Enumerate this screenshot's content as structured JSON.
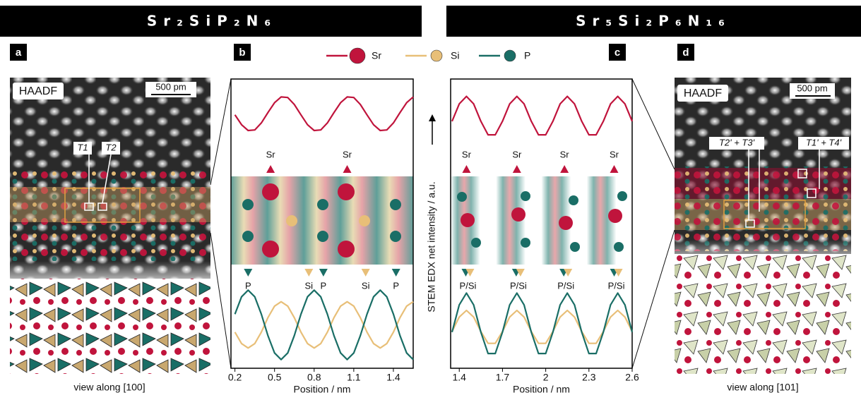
{
  "headers": [
    "Sr₂SiP₂N₆",
    "Sr₅Si₂P₆N₁₆"
  ],
  "panel_labels": [
    "a",
    "b",
    "c",
    "d"
  ],
  "images": [
    {
      "label": "HAADF",
      "scale": "500 pm",
      "sites": [
        "T1",
        "T2"
      ],
      "caption": "view along [100]"
    },
    {
      "label": "HAADF",
      "scale": "500 pm",
      "sites": [
        "T2' + T3'",
        "T1' + T4'"
      ],
      "caption": "view along [101]"
    }
  ],
  "y_label": "STEM EDX net intensity / a.u.",
  "chart_data": [
    {
      "type": "line",
      "x_label": "Position / nm",
      "x": [
        0.2,
        0.25,
        0.3,
        0.35,
        0.4,
        0.45,
        0.5,
        0.55,
        0.6,
        0.65,
        0.7,
        0.75,
        0.8,
        0.85,
        0.9,
        0.95,
        1.0,
        1.05,
        1.1,
        1.15,
        1.2,
        1.25,
        1.3,
        1.35,
        1.4,
        1.45,
        1.5,
        1.55
      ],
      "series": [
        {
          "name": "Sr",
          "color": "#c0143c",
          "values": [
            0.876,
            0.842,
            0.822,
            0.824,
            0.848,
            0.884,
            0.918,
            0.938,
            0.936,
            0.912,
            0.876,
            0.842,
            0.822,
            0.824,
            0.848,
            0.884,
            0.918,
            0.938,
            0.936,
            0.912,
            0.876,
            0.842,
            0.822,
            0.824,
            0.848,
            0.884,
            0.918,
            0.938
          ]
        },
        {
          "name": "Si",
          "color": "#e8bf78",
          "values": [
            0.125,
            0.085,
            0.07,
            0.085,
            0.125,
            0.175,
            0.215,
            0.23,
            0.215,
            0.175,
            0.125,
            0.085,
            0.07,
            0.085,
            0.125,
            0.175,
            0.215,
            0.23,
            0.215,
            0.175,
            0.125,
            0.085,
            0.07,
            0.085,
            0.125,
            0.175,
            0.215,
            0.23
          ]
        },
        {
          "name": "P",
          "color": "#1a6e66",
          "values": [
            0.187,
            0.247,
            0.27,
            0.247,
            0.187,
            0.113,
            0.053,
            0.03,
            0.053,
            0.113,
            0.187,
            0.247,
            0.27,
            0.247,
            0.187,
            0.113,
            0.053,
            0.03,
            0.053,
            0.113,
            0.187,
            0.247,
            0.27,
            0.247,
            0.187,
            0.113,
            0.053,
            0.03
          ]
        }
      ],
      "xlim": [
        0.17,
        1.55
      ],
      "ylim": [
        0,
        1
      ],
      "xticks": [
        0.2,
        0.5,
        0.8,
        1.1,
        1.4
      ],
      "top_markers": {
        "labels": [
          "Sr",
          "Sr"
        ],
        "x": [
          0.47,
          1.05
        ]
      },
      "bottom_markers": {
        "labels": [
          "P",
          "Si",
          "P",
          "Si",
          "P"
        ],
        "x": [
          0.3,
          0.76,
          0.87,
          1.19,
          1.42
        ]
      }
    },
    {
      "type": "line",
      "x_label": "Position / nm",
      "x": [
        1.35,
        1.4,
        1.45,
        1.5,
        1.55,
        1.6,
        1.65,
        1.7,
        1.75,
        1.8,
        1.85,
        1.9,
        1.95,
        2.0,
        2.05,
        2.1,
        2.15,
        2.2,
        2.25,
        2.3,
        2.35,
        2.4,
        2.45,
        2.5,
        2.55,
        2.6
      ],
      "series": [
        {
          "name": "Sr",
          "color": "#c0143c",
          "values": [
            0.854,
            0.914,
            0.94,
            0.914,
            0.854,
            0.807,
            0.807,
            0.854,
            0.914,
            0.94,
            0.914,
            0.854,
            0.807,
            0.807,
            0.854,
            0.914,
            0.94,
            0.914,
            0.854,
            0.807,
            0.807,
            0.854,
            0.914,
            0.94,
            0.914,
            0.854
          ]
        },
        {
          "name": "Si",
          "color": "#e8bf78",
          "values": [
            0.127,
            0.177,
            0.2,
            0.177,
            0.127,
            0.086,
            0.086,
            0.127,
            0.177,
            0.2,
            0.177,
            0.127,
            0.086,
            0.086,
            0.127,
            0.177,
            0.2,
            0.177,
            0.127,
            0.086,
            0.086,
            0.127,
            0.177,
            0.2,
            0.177,
            0.127
          ]
        },
        {
          "name": "P",
          "color": "#1a6e66",
          "values": [
            0.125,
            0.219,
            0.26,
            0.219,
            0.125,
            0.051,
            0.051,
            0.125,
            0.219,
            0.26,
            0.219,
            0.125,
            0.051,
            0.051,
            0.125,
            0.219,
            0.26,
            0.219,
            0.125,
            0.051,
            0.051,
            0.125,
            0.219,
            0.26,
            0.219,
            0.125
          ]
        }
      ],
      "xlim": [
        1.34,
        2.6
      ],
      "ylim": [
        0,
        1
      ],
      "xticks": [
        1.4,
        1.7,
        2.0,
        2.3,
        2.6
      ],
      "top_markers": {
        "labels": [
          "Sr",
          "Sr",
          "Sr",
          "Sr"
        ],
        "x": [
          1.45,
          1.8,
          2.13,
          2.475
        ]
      },
      "bottom_markers": {
        "labels": [
          "P/Si",
          "P/Si",
          "P/Si",
          "P/Si"
        ],
        "x": [
          1.46,
          1.81,
          2.14,
          2.49
        ]
      }
    }
  ]
}
